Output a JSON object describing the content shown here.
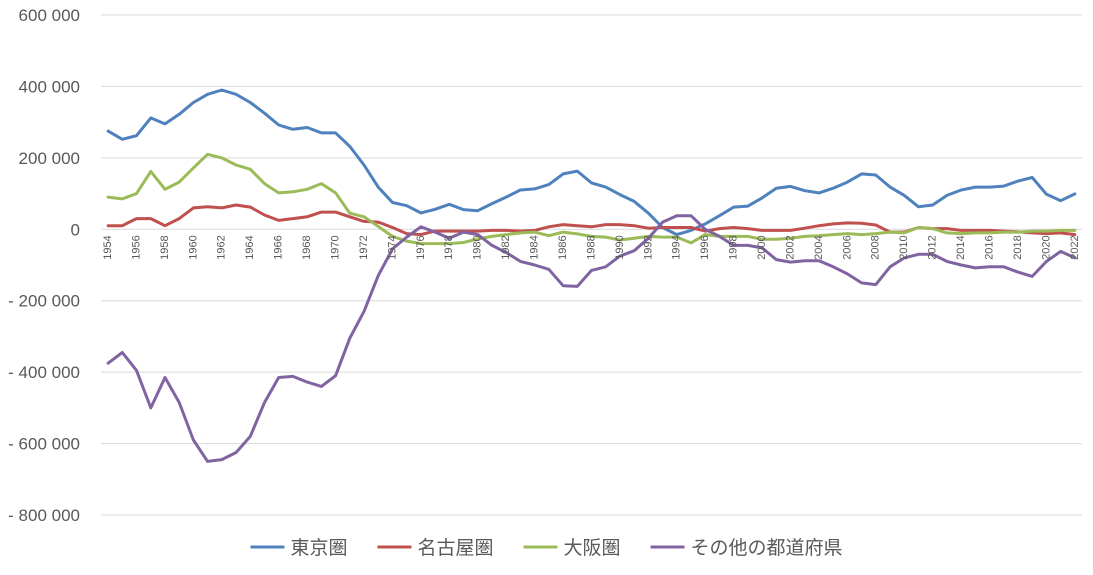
{
  "chart_data": {
    "type": "line",
    "title": "",
    "xlabel": "",
    "ylabel": "",
    "ylim": [
      -800000,
      600000
    ],
    "yticks": [
      600000,
      400000,
      200000,
      0,
      -200000,
      -400000,
      -600000,
      -800000
    ],
    "ytick_labels": [
      "600 000",
      "400 000",
      "200 000",
      "0",
      "- 200 000",
      "- 400 000",
      "- 600 000",
      "- 800 000"
    ],
    "x": [
      1954,
      1955,
      1956,
      1957,
      1958,
      1959,
      1960,
      1961,
      1962,
      1963,
      1964,
      1965,
      1966,
      1967,
      1968,
      1969,
      1970,
      1971,
      1972,
      1973,
      1974,
      1975,
      1976,
      1977,
      1978,
      1979,
      1980,
      1981,
      1982,
      1983,
      1984,
      1985,
      1986,
      1987,
      1988,
      1989,
      1990,
      1991,
      1992,
      1993,
      1994,
      1995,
      1996,
      1997,
      1998,
      1999,
      2000,
      2001,
      2002,
      2003,
      2004,
      2005,
      2006,
      2007,
      2008,
      2009,
      2010,
      2011,
      2012,
      2013,
      2014,
      2015,
      2016,
      2017,
      2018,
      2019,
      2020,
      2021,
      2022
    ],
    "xtick_labels": [
      "1954",
      "1956",
      "1958",
      "1960",
      "1962",
      "1964",
      "1966",
      "1968",
      "1970",
      "1972",
      "1974",
      "1976",
      "1978",
      "1980",
      "1982",
      "1984",
      "1986",
      "1988",
      "1990",
      "1992",
      "1994",
      "1996",
      "1998",
      "2000",
      "2002",
      "2004",
      "2006",
      "2008",
      "2010",
      "2012",
      "2014",
      "2016",
      "2018",
      "2020",
      "2022"
    ],
    "grid": true,
    "legend_position": "bottom",
    "series": [
      {
        "name": "東京圏",
        "color": "#4f81bd",
        "values": [
          275000,
          252000,
          262000,
          312000,
          295000,
          322000,
          355000,
          378000,
          390000,
          378000,
          355000,
          325000,
          292000,
          280000,
          285000,
          270000,
          270000,
          232000,
          180000,
          118000,
          75000,
          66000,
          46000,
          56000,
          70000,
          55000,
          52000,
          72000,
          90000,
          110000,
          113000,
          125000,
          155000,
          163000,
          130000,
          118000,
          97000,
          78000,
          45000,
          5000,
          -15000,
          -3000,
          15000,
          38000,
          62000,
          65000,
          88000,
          115000,
          120000,
          108000,
          102000,
          115000,
          132000,
          155000,
          152000,
          118000,
          95000,
          63000,
          68000,
          95000,
          110000,
          118000,
          118000,
          121000,
          135000,
          145000,
          98000,
          80000,
          99000
        ]
      },
      {
        "name": "名古屋圏",
        "color": "#c0504d",
        "values": [
          10000,
          10000,
          30000,
          30000,
          10000,
          30000,
          60000,
          63000,
          60000,
          68000,
          62000,
          40000,
          25000,
          30000,
          35000,
          48000,
          48000,
          35000,
          22000,
          20000,
          5000,
          -12000,
          -15000,
          -5000,
          -5000,
          -5000,
          -5000,
          -3000,
          -3000,
          -5000,
          -3000,
          7000,
          13000,
          10000,
          7000,
          13000,
          13000,
          10000,
          3000,
          5000,
          5000,
          5000,
          -5000,
          2000,
          5000,
          2000,
          -3000,
          -3000,
          -3000,
          3000,
          10000,
          15000,
          18000,
          17000,
          12000,
          -8000,
          -8000,
          5000,
          2000,
          2000,
          -3000,
          -3000,
          -3000,
          -5000,
          -7000,
          -10000,
          -12000,
          -10000,
          -15000
        ]
      },
      {
        "name": "大阪圏",
        "color": "#9bbb59",
        "values": [
          90000,
          85000,
          100000,
          162000,
          112000,
          132000,
          172000,
          210000,
          200000,
          180000,
          168000,
          128000,
          102000,
          105000,
          112000,
          128000,
          102000,
          45000,
          35000,
          8000,
          -20000,
          -33000,
          -40000,
          -40000,
          -40000,
          -37000,
          -27000,
          -20000,
          -15000,
          -10000,
          -8000,
          -18000,
          -8000,
          -13000,
          -20000,
          -22000,
          -30000,
          -25000,
          -20000,
          -22000,
          -22000,
          -38000,
          -15000,
          -20000,
          -20000,
          -20000,
          -28000,
          -28000,
          -25000,
          -20000,
          -18000,
          -15000,
          -12000,
          -15000,
          -12000,
          -8000,
          -10000,
          5000,
          2000,
          -10000,
          -12000,
          -10000,
          -10000,
          -8000,
          -8000,
          -5000,
          -5000,
          -3000,
          -3000
        ]
      },
      {
        "name": "その他の都道府県",
        "color": "#8064a2",
        "values": [
          -375000,
          -345000,
          -395000,
          -500000,
          -415000,
          -485000,
          -590000,
          -650000,
          -645000,
          -625000,
          -580000,
          -485000,
          -415000,
          -412000,
          -428000,
          -440000,
          -410000,
          -305000,
          -230000,
          -130000,
          -55000,
          -22000,
          7000,
          -8000,
          -25000,
          -8000,
          -15000,
          -45000,
          -65000,
          -90000,
          -100000,
          -112000,
          -158000,
          -160000,
          -115000,
          -105000,
          -75000,
          -60000,
          -25000,
          20000,
          38000,
          38000,
          0,
          -20000,
          -45000,
          -45000,
          -52000,
          -85000,
          -92000,
          -88000,
          -88000,
          -105000,
          -125000,
          -150000,
          -155000,
          -105000,
          -80000,
          -70000,
          -70000,
          -90000,
          -100000,
          -108000,
          -105000,
          -105000,
          -120000,
          -132000,
          -90000,
          -62000,
          -80000
        ]
      }
    ]
  }
}
